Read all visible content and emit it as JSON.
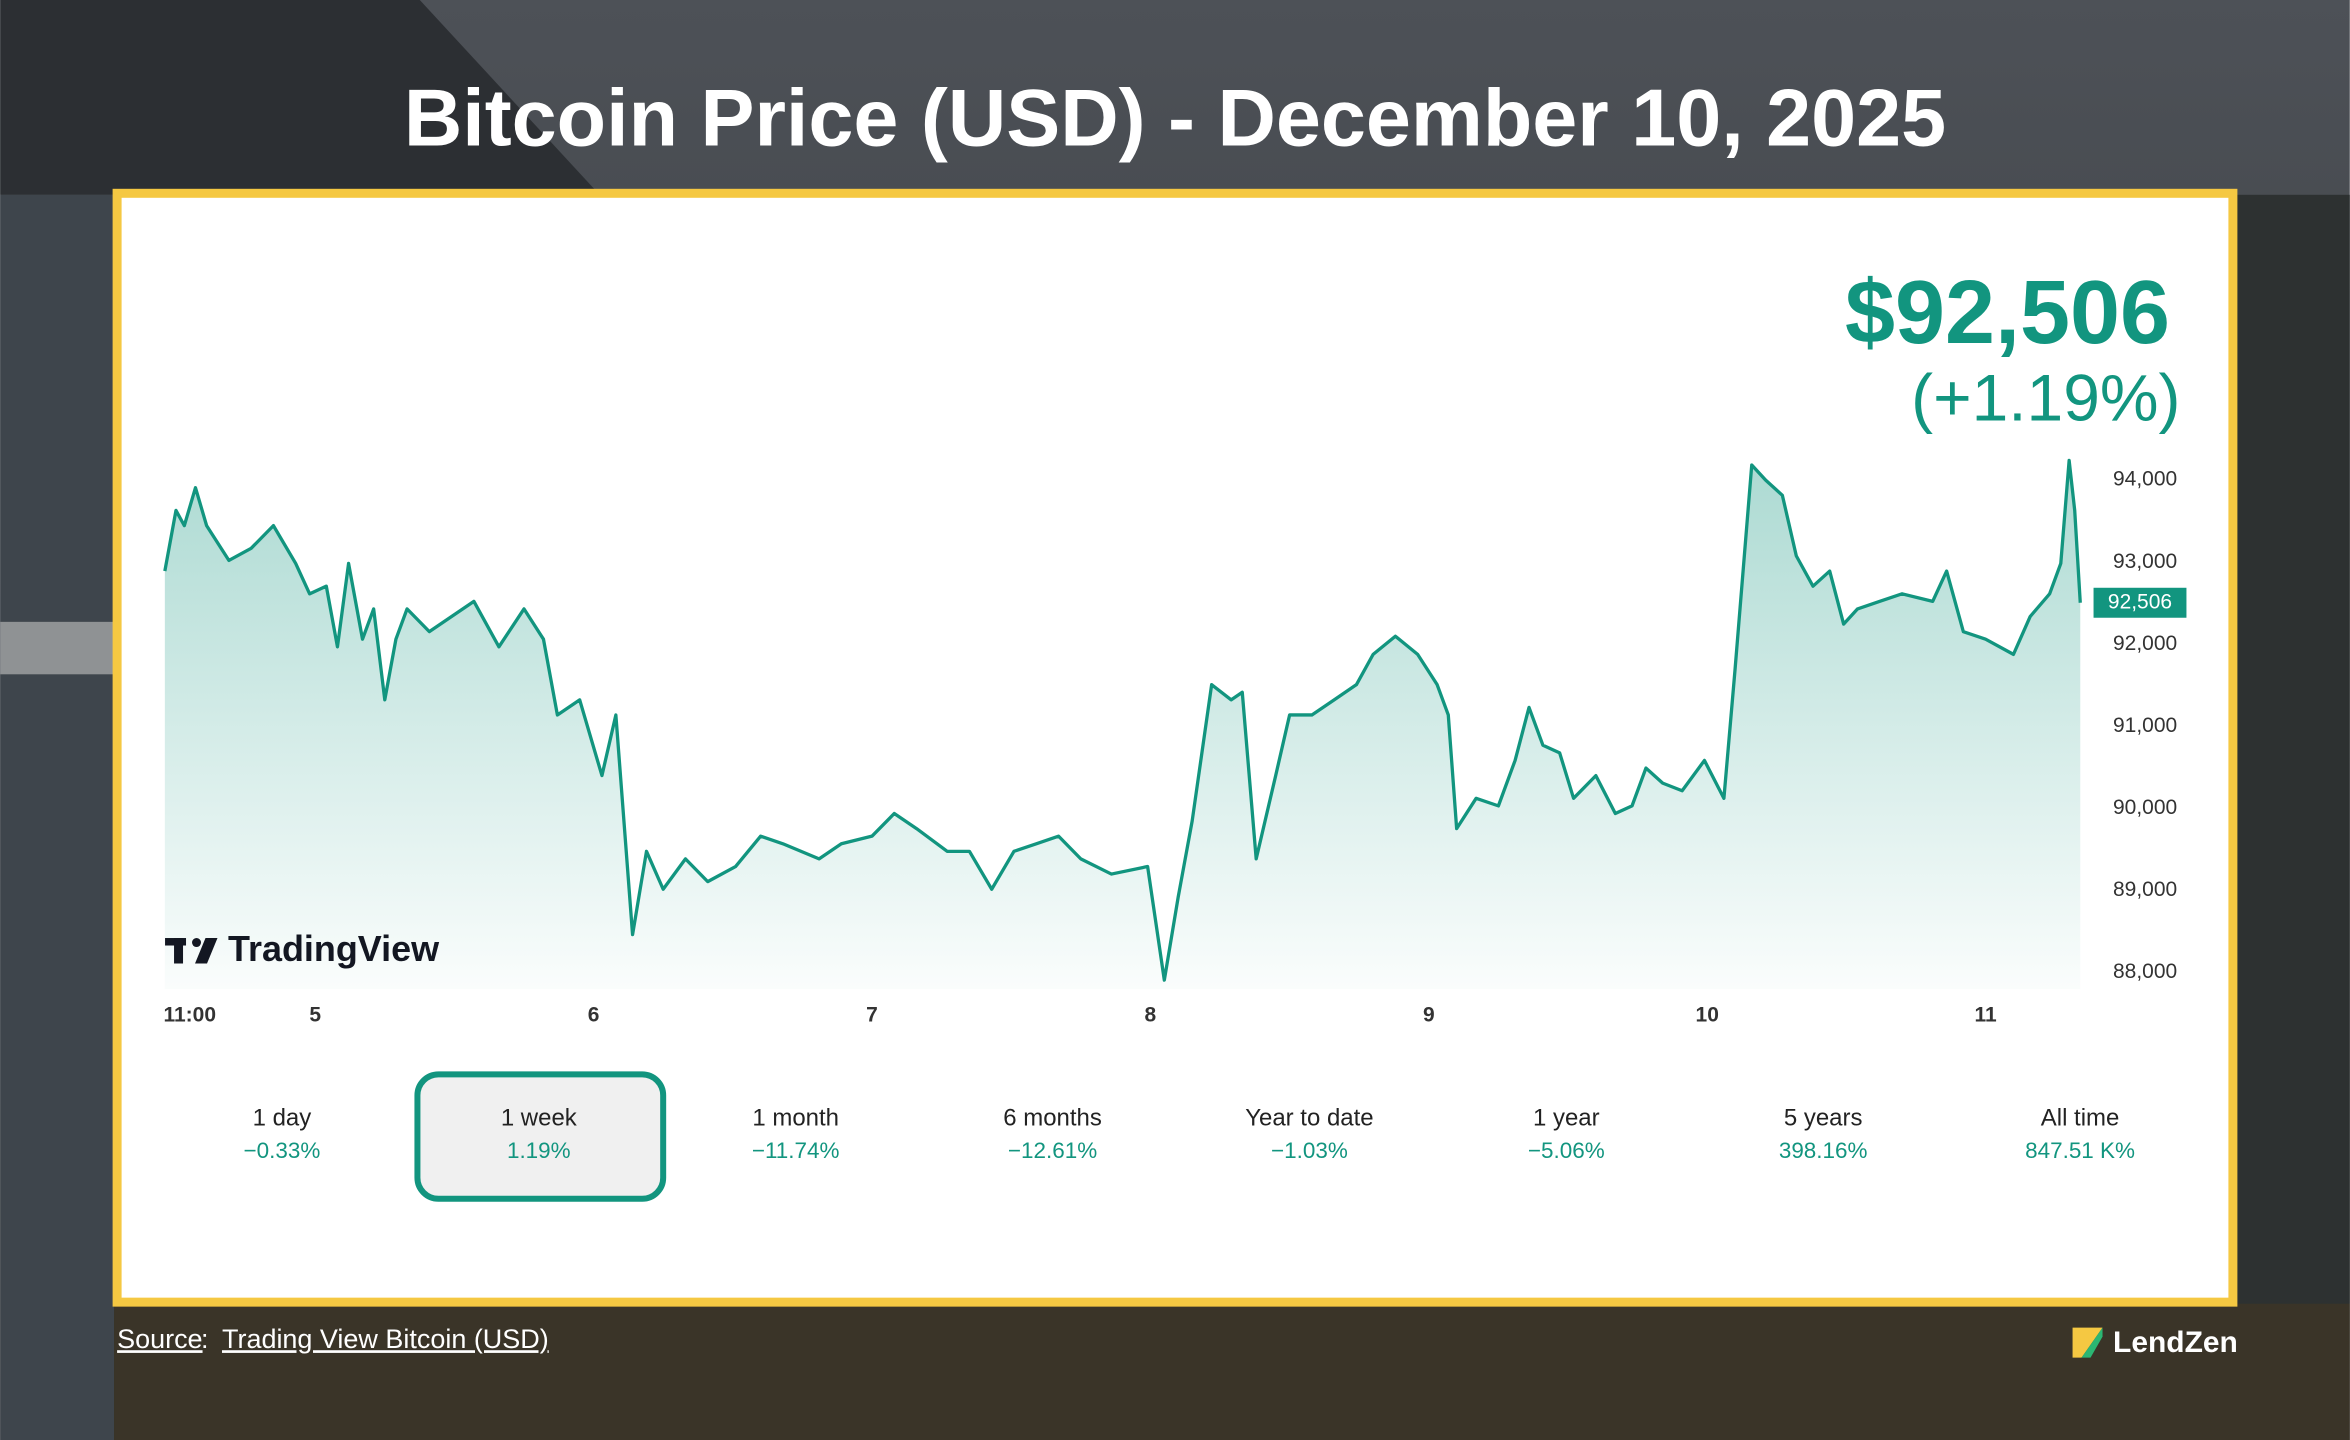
{
  "chart_data": {
    "type": "line",
    "title": "Bitcoin Price (USD) - December 10, 2025",
    "x": [
      4.46,
      4.5,
      4.53,
      4.57,
      4.61,
      4.69,
      4.77,
      4.85,
      4.93,
      4.98,
      5.04,
      5.08,
      5.12,
      5.17,
      5.21,
      5.25,
      5.29,
      5.33,
      5.41,
      5.49,
      5.57,
      5.66,
      5.75,
      5.82,
      5.87,
      5.95,
      6.03,
      6.08,
      6.14,
      6.19,
      6.25,
      6.33,
      6.41,
      6.51,
      6.6,
      6.68,
      6.81,
      6.89,
      7.0,
      7.08,
      7.16,
      7.27,
      7.35,
      7.43,
      7.51,
      7.59,
      7.67,
      7.75,
      7.86,
      7.99,
      8.05,
      8.1,
      8.15,
      8.22,
      8.29,
      8.33,
      8.38,
      8.45,
      8.5,
      8.58,
      8.66,
      8.74,
      8.8,
      8.88,
      8.96,
      9.03,
      9.07,
      9.1,
      9.17,
      9.25,
      9.31,
      9.36,
      9.41,
      9.47,
      9.52,
      9.6,
      9.67,
      9.73,
      9.78,
      9.84,
      9.91,
      9.99,
      10.06,
      10.1,
      10.16,
      10.21,
      10.27,
      10.32,
      10.38,
      10.44,
      10.49,
      10.54,
      10.62,
      10.7,
      10.81,
      10.86,
      10.92,
      11.0,
      11.1,
      11.16,
      11.23,
      11.27,
      11.3,
      11.32,
      11.34
    ],
    "values": [
      92892,
      93631,
      93446,
      93908,
      93446,
      93022,
      93169,
      93446,
      92985,
      92615,
      92708,
      91969,
      92985,
      92062,
      92431,
      91323,
      92062,
      92431,
      92154,
      92338,
      92523,
      91969,
      92431,
      92062,
      91139,
      91323,
      90400,
      91139,
      88462,
      89477,
      89015,
      89385,
      89108,
      89292,
      89662,
      89569,
      89385,
      89569,
      89662,
      89938,
      89754,
      89477,
      89477,
      89015,
      89477,
      89569,
      89662,
      89385,
      89200,
      89292,
      87908,
      88923,
      89846,
      91508,
      91323,
      91415,
      89385,
      90400,
      91139,
      91139,
      91323,
      91508,
      91877,
      92098,
      91877,
      91508,
      91139,
      89754,
      90123,
      90031,
      90585,
      91231,
      90769,
      90677,
      90123,
      90400,
      89938,
      90031,
      90492,
      90308,
      90215,
      90585,
      90123,
      91692,
      94185,
      94000,
      93815,
      93077,
      92708,
      92892,
      92246,
      92431,
      92523,
      92615,
      92523,
      92892,
      92154,
      92062,
      91877,
      92338,
      92615,
      92985,
      94240,
      93631,
      92506
    ],
    "color": "#12957f",
    "xlim": [
      4.45,
      11.35
    ],
    "xticks": [
      {
        "value": 4.458,
        "label": "11:00"
      },
      5,
      6,
      7,
      8,
      9,
      10,
      11
    ],
    "ylim": [
      87800,
      94300
    ],
    "yticks": [
      {
        "value": 88000,
        "label": "88,000"
      },
      {
        "value": 89000,
        "label": "89,000"
      },
      {
        "value": 90000,
        "label": "90,000"
      },
      {
        "value": 91000,
        "label": "91,000"
      },
      {
        "value": 92000,
        "label": "92,000"
      },
      {
        "value": 93000,
        "label": "93,000"
      },
      {
        "value": 94000,
        "label": "94,000"
      }
    ],
    "grid": false
  },
  "price": "$92,506",
  "change": "(+1.19%)",
  "price_tag": {
    "value": 92506,
    "label": "92,506"
  },
  "watermark": "TradingView",
  "ranges": [
    {
      "label": "1 day",
      "change": "−0.33%"
    },
    {
      "label": "1 week",
      "change": "1.19%"
    },
    {
      "label": "1 month",
      "change": "−11.74%"
    },
    {
      "label": "6 months",
      "change": "−12.61%"
    },
    {
      "label": "Year to date",
      "change": "−1.03%"
    },
    {
      "label": "1 year",
      "change": "−5.06%"
    },
    {
      "label": "5 years",
      "change": "398.16%"
    },
    {
      "label": "All time",
      "change": "847.51 K%"
    }
  ],
  "selected_range": 1,
  "source": {
    "label": "Source",
    "separator": ":",
    "link": "Trading View Bitcoin (USD)"
  },
  "brand": "LendZen"
}
